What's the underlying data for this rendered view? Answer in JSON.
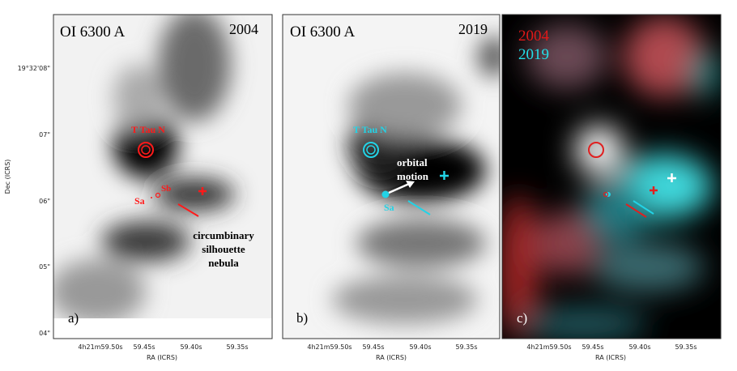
{
  "axes": {
    "ylabel": "Dec (ICRS)",
    "xlabel": "RA (ICRS)",
    "yticks": [
      "19°32'08\"",
      "07\"",
      "06\"",
      "05\"",
      "04\""
    ],
    "xticks": [
      "4h21m59.50s",
      "59.45s",
      "59.40s",
      "59.35s"
    ]
  },
  "panels": [
    {
      "title": "OI 6300 A",
      "year": "2004",
      "label": "a)",
      "star": "T Tau N",
      "sa": "Sa",
      "sb": "Sb",
      "annotation": [
        "circumbinary",
        "silhouette",
        "nebula"
      ],
      "color": "#ff1a1a"
    },
    {
      "title": "OI 6300 A",
      "year": "2019",
      "label": "b)",
      "star": "T Tau N",
      "sa": "Sa",
      "annotation": [
        "orbital",
        "motion"
      ],
      "color": "#22d3e6"
    },
    {
      "label": "c)",
      "legend": [
        {
          "text": "2004",
          "color": "#e01818"
        },
        {
          "text": "2019",
          "color": "#22e0ea"
        }
      ]
    }
  ]
}
